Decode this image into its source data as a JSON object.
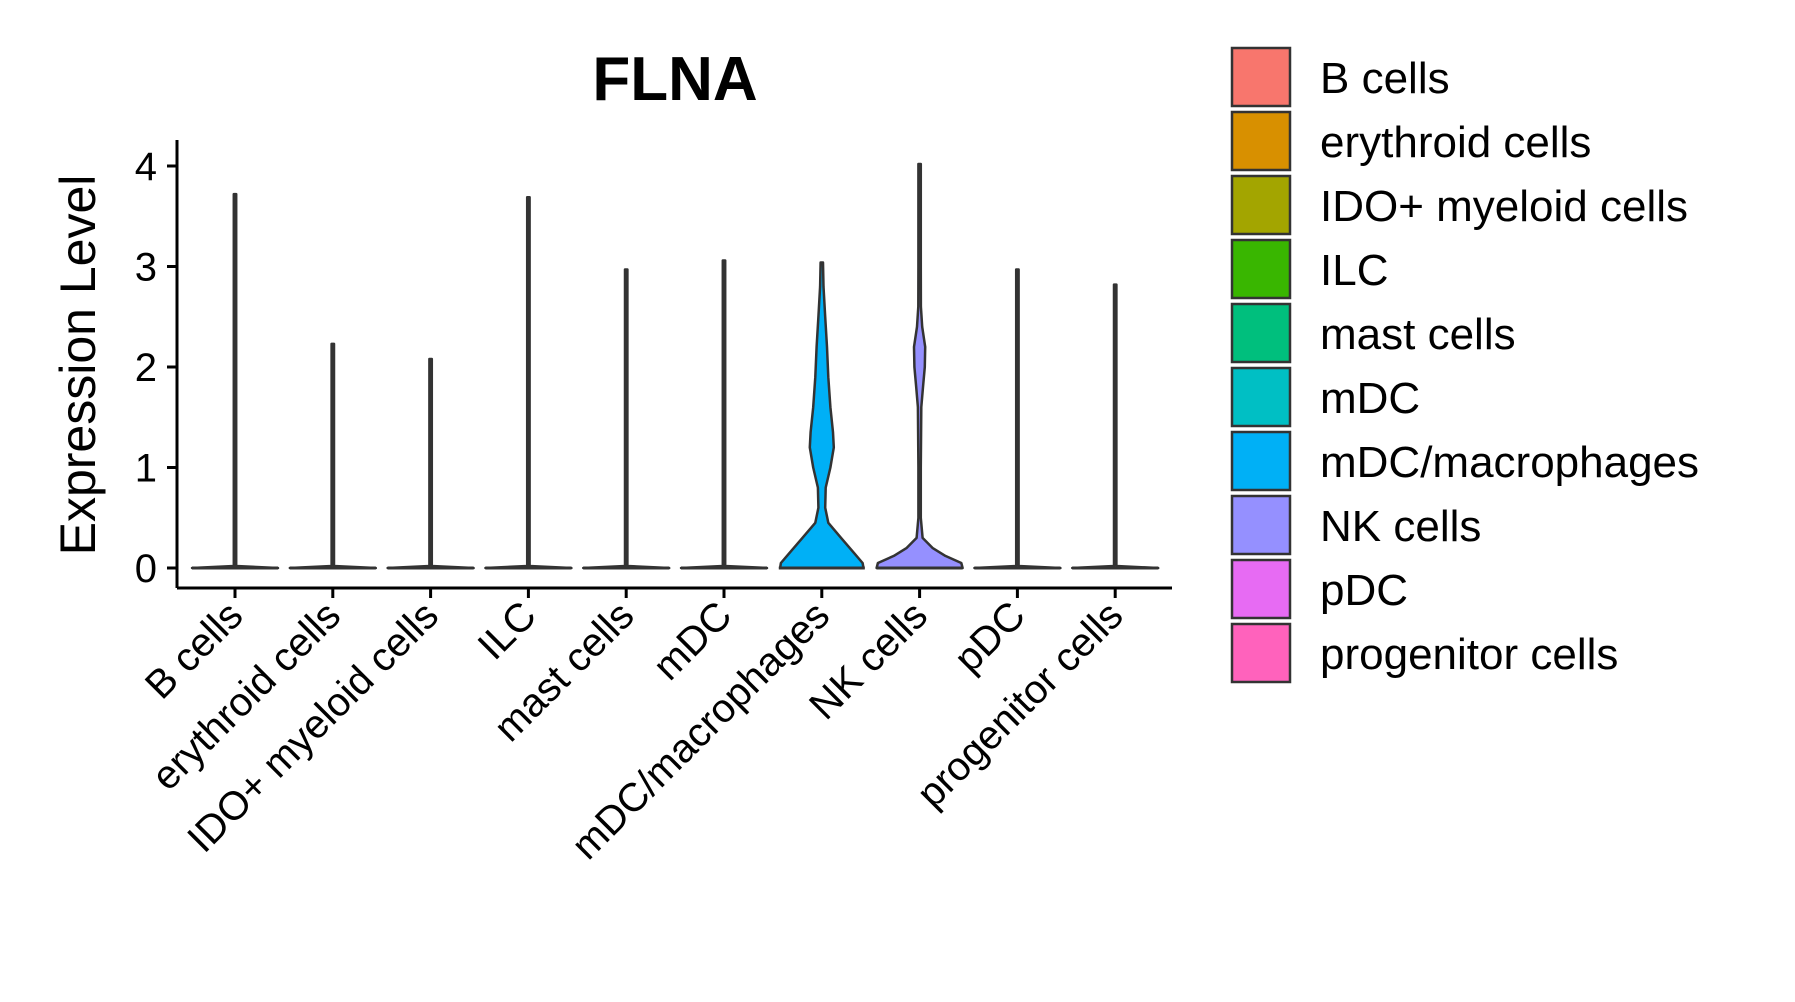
{
  "chart_data": {
    "type": "violin",
    "title": "FLNA",
    "xlabel": "",
    "ylabel": "Expression Level",
    "ylim": [
      0,
      4.2
    ],
    "yticks": [
      0,
      1,
      2,
      3,
      4
    ],
    "categories": [
      "B cells",
      "erythroid cells",
      "IDO+ myeloid cells",
      "ILC",
      "mast cells",
      "mDC",
      "mDC/macrophages",
      "NK cells",
      "pDC",
      "progenitor cells"
    ],
    "colors": [
      "#F8766D",
      "#D89000",
      "#A3A500",
      "#39B600",
      "#00BF7D",
      "#00BFC4",
      "#00B0F6",
      "#9590FF",
      "#E76BF3",
      "#FF62BC"
    ],
    "max_values": [
      3.72,
      2.23,
      2.08,
      3.69,
      2.97,
      3.06,
      3.04,
      4.02,
      2.97,
      2.82
    ],
    "density_profiles": [
      [
        [
          0,
          1
        ],
        [
          0.02,
          0.02
        ],
        [
          3.72,
          0.0
        ]
      ],
      [
        [
          0,
          1
        ],
        [
          0.02,
          0.02
        ],
        [
          2.23,
          0.0
        ]
      ],
      [
        [
          0,
          1
        ],
        [
          0.02,
          0.02
        ],
        [
          2.08,
          0.0
        ]
      ],
      [
        [
          0,
          1
        ],
        [
          0.02,
          0.02
        ],
        [
          3.69,
          0.0
        ]
      ],
      [
        [
          0,
          1
        ],
        [
          0.02,
          0.02
        ],
        [
          2.97,
          0.0
        ]
      ],
      [
        [
          0,
          1
        ],
        [
          0.02,
          0.02
        ],
        [
          3.06,
          0.0
        ]
      ],
      [
        [
          0,
          0.97
        ],
        [
          0.05,
          0.95
        ],
        [
          0.15,
          0.75
        ],
        [
          0.3,
          0.45
        ],
        [
          0.45,
          0.15
        ],
        [
          0.6,
          0.08
        ],
        [
          0.8,
          0.09
        ],
        [
          1.0,
          0.2
        ],
        [
          1.2,
          0.28
        ],
        [
          1.35,
          0.26
        ],
        [
          1.6,
          0.2
        ],
        [
          1.9,
          0.15
        ],
        [
          2.2,
          0.12
        ],
        [
          2.5,
          0.08
        ],
        [
          2.8,
          0.04
        ],
        [
          3.04,
          0.0
        ]
      ],
      [
        [
          0,
          1
        ],
        [
          0.05,
          0.97
        ],
        [
          0.12,
          0.6
        ],
        [
          0.2,
          0.3
        ],
        [
          0.3,
          0.07
        ],
        [
          0.5,
          0.02
        ],
        [
          1.0,
          0.02
        ],
        [
          1.6,
          0.04
        ],
        [
          1.8,
          0.08
        ],
        [
          2.0,
          0.12
        ],
        [
          2.2,
          0.13
        ],
        [
          2.4,
          0.06
        ],
        [
          2.6,
          0.03
        ],
        [
          3.0,
          0.02
        ],
        [
          4.02,
          0.0
        ]
      ],
      [
        [
          0,
          1
        ],
        [
          0.02,
          0.02
        ],
        [
          2.97,
          0.0
        ]
      ],
      [
        [
          0,
          1
        ],
        [
          0.02,
          0.02
        ],
        [
          2.82,
          0.0
        ]
      ]
    ],
    "legend": [
      "B cells",
      "erythroid cells",
      "IDO+ myeloid cells",
      "ILC",
      "mast cells",
      "mDC",
      "mDC/macrophages",
      "NK cells",
      "pDC",
      "progenitor cells"
    ],
    "legend_position": "right",
    "grid": false
  }
}
